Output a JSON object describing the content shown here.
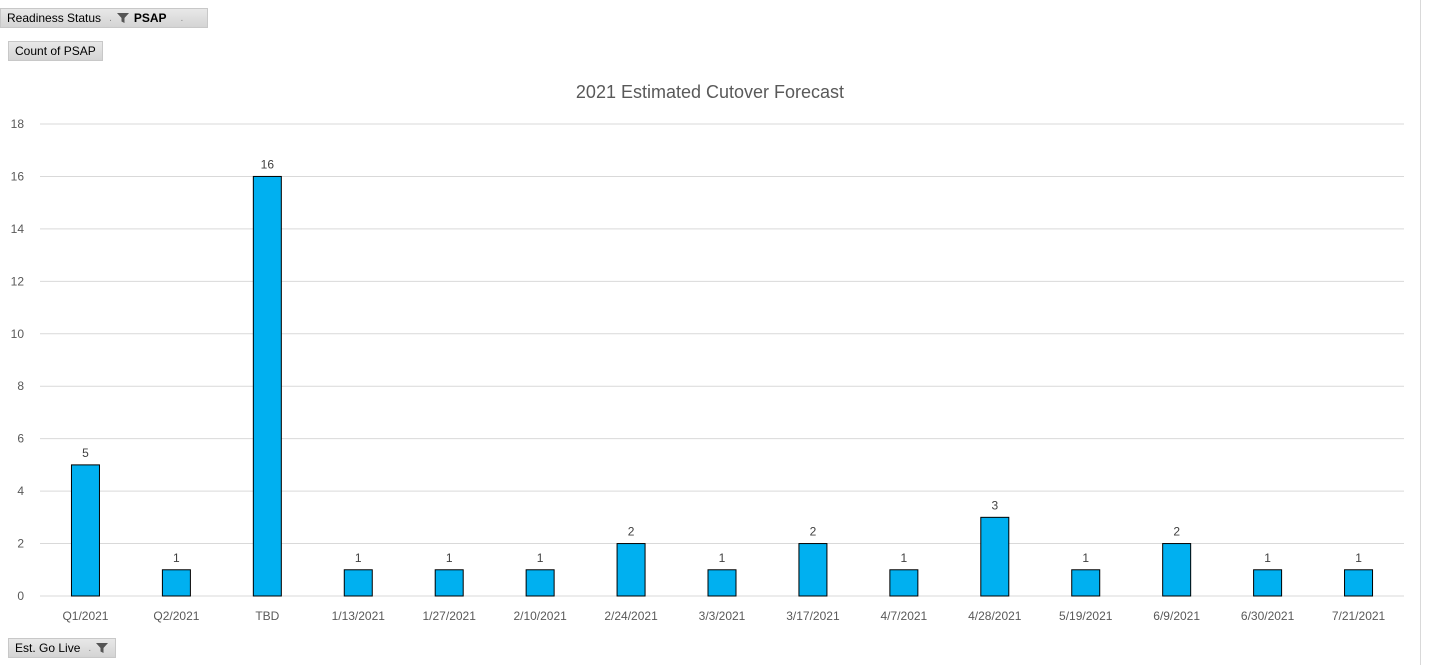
{
  "filters": {
    "report_filter_label": "Readiness Status",
    "report_filter_value": "PSAP",
    "values_label": "Count of PSAP",
    "axis_field_label": "Est. Go Live"
  },
  "colors": {
    "bar_fill": "#00b0f0",
    "bar_stroke": "#000000",
    "gridline": "#d9d9d9"
  },
  "chart_data": {
    "type": "bar",
    "title": "2021 Estimated Cutover Forecast",
    "xlabel": "",
    "ylabel": "",
    "categories": [
      "Q1/2021",
      "Q2/2021",
      "TBD",
      "1/13/2021",
      "1/27/2021",
      "2/10/2021",
      "2/24/2021",
      "3/3/2021",
      "3/17/2021",
      "4/7/2021",
      "4/28/2021",
      "5/19/2021",
      "6/9/2021",
      "6/30/2021",
      "7/21/2021"
    ],
    "values": [
      5,
      1,
      16,
      1,
      1,
      1,
      2,
      1,
      2,
      1,
      3,
      1,
      2,
      1,
      1
    ],
    "ylim": [
      0,
      18
    ],
    "yticks": [
      0,
      2,
      4,
      6,
      8,
      10,
      12,
      14,
      16,
      18
    ],
    "data_labels": true,
    "grid": true,
    "legend": "none"
  }
}
